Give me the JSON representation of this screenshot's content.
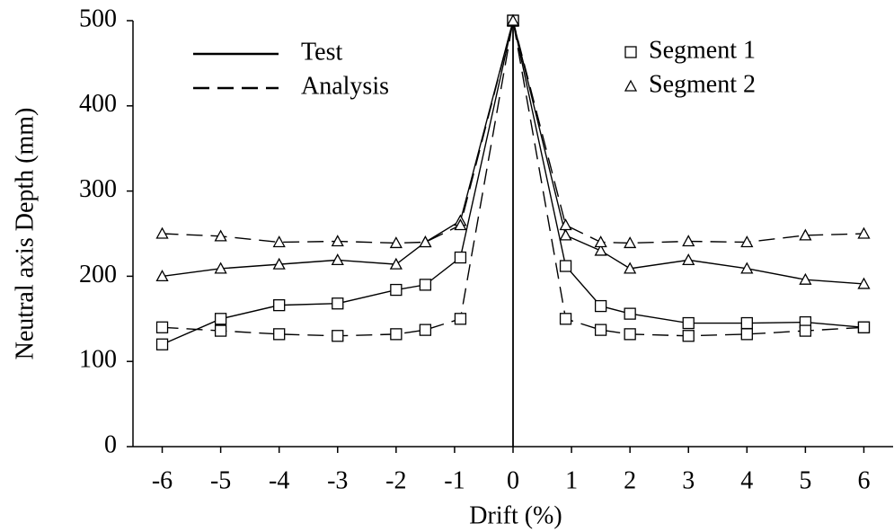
{
  "chart_data": {
    "type": "line",
    "xlabel": "Drift (%)",
    "ylabel": "Neutral axis Depth (mm)",
    "xlim": [
      -6.5,
      6.5
    ],
    "ylim": [
      0,
      500
    ],
    "xticks": [
      -6,
      -5,
      -4,
      -3,
      -2,
      -1,
      0,
      1,
      2,
      3,
      4,
      5,
      6
    ],
    "yticks": [
      0,
      100,
      200,
      300,
      400,
      500
    ],
    "vline": 0,
    "line_legend": [
      {
        "label": "Test",
        "dash": "solid"
      },
      {
        "label": "Analysis",
        "dash": "dashed"
      }
    ],
    "marker_legend": [
      {
        "label": "Segment 1",
        "marker": "square"
      },
      {
        "label": "Segment 2",
        "marker": "triangle"
      }
    ],
    "x": [
      -6,
      -5,
      -4,
      -3,
      -2,
      -1.5,
      -0.9,
      0,
      0.9,
      1.5,
      2,
      3,
      4,
      5,
      6
    ],
    "series": [
      {
        "dash": "solid",
        "marker": "square",
        "color": "#000000",
        "values": [
          120,
          150,
          166,
          168,
          184,
          190,
          222,
          500,
          212,
          165,
          156,
          145,
          145,
          146,
          140
        ]
      },
      {
        "dash": "solid",
        "marker": "triangle",
        "color": "#000000",
        "values": [
          200,
          209,
          214,
          219,
          214,
          240,
          265,
          500,
          248,
          230,
          209,
          219,
          209,
          196,
          191
        ]
      },
      {
        "dash": "dashed",
        "marker": "square",
        "color": "#000000",
        "values": [
          140,
          136,
          132,
          130,
          132,
          137,
          150,
          500,
          150,
          137,
          132,
          130,
          132,
          136,
          140
        ]
      },
      {
        "dash": "dashed",
        "marker": "triangle",
        "color": "#000000",
        "values": [
          250,
          247,
          240,
          241,
          239,
          240,
          260,
          500,
          260,
          240,
          239,
          241,
          240,
          248,
          250
        ]
      }
    ]
  }
}
